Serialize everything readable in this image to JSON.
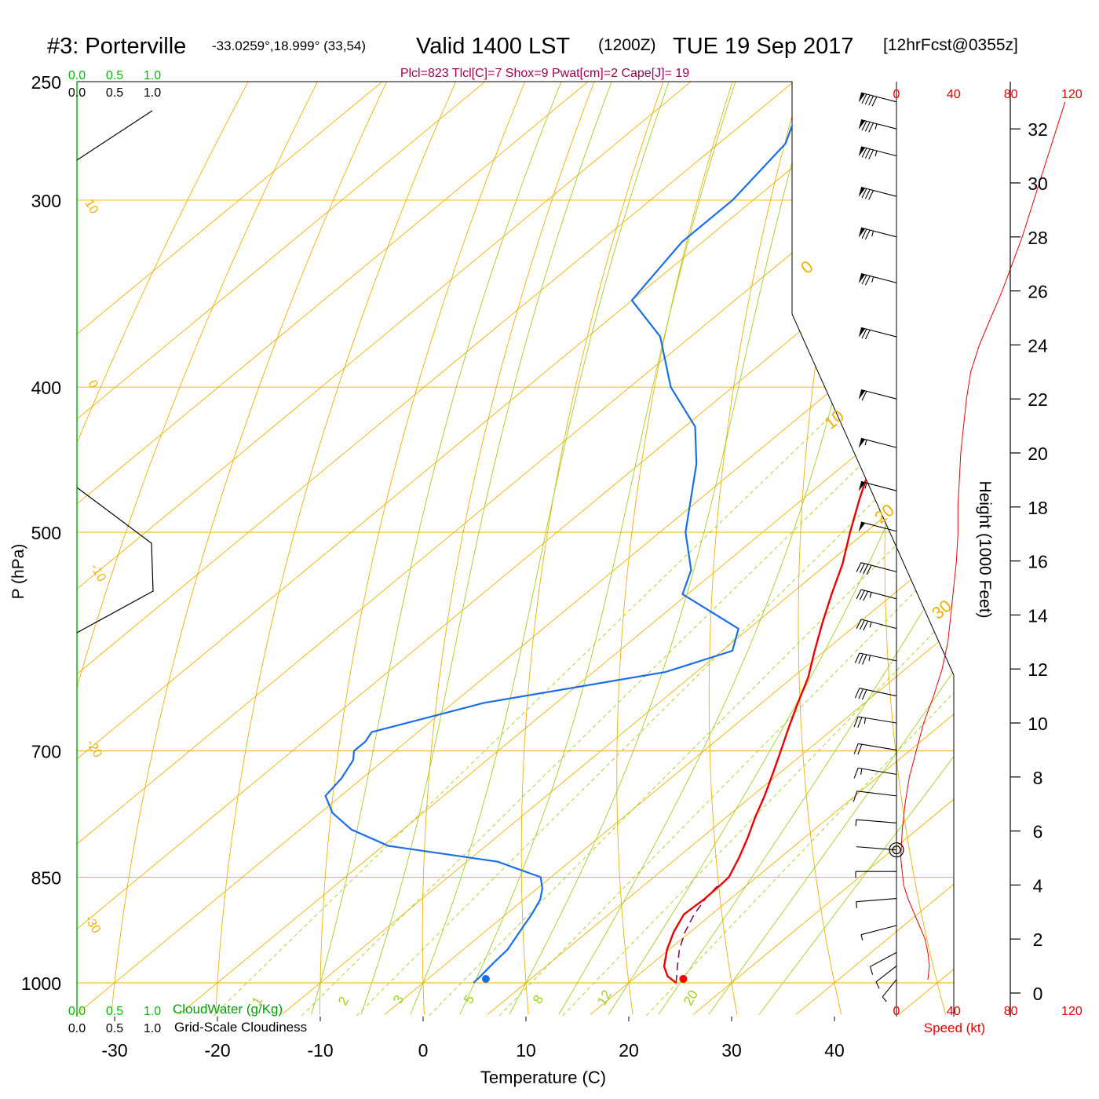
{
  "header": {
    "station": "#3: Porterville",
    "location": "-33.0259°,18.999° (33,54)",
    "valid": "Valid 1400 LST",
    "utc": "(1200Z)",
    "date": "TUE 19 Sep 2017",
    "forecast": "[12hrFcst@0355z]",
    "indices": "Plcl=823 Tlcl[C]=7 Shox=9 Pwat[cm]=2 Cape[J]= 19"
  },
  "labels": {
    "ylabel": "P (hPa)",
    "xlabel": "Temperature (C)",
    "height_label": "Height (1000 Feet)",
    "speed_label": "Speed (kt)",
    "cloudwater_label": "CloudWater (g/Kg)",
    "cloudiness_label": "Grid-Scale Cloudiness"
  },
  "colors": {
    "isotherm": "#f0b000",
    "dry_adiabat": "#f0b000",
    "moist_adiabat": "#a0d020",
    "mixing_ratio": "#a0d020",
    "temperature": "#ee0000",
    "dewpoint": "#1a6fe8",
    "parcel": "#800050",
    "cloudwater": "#00a000",
    "indices": "#a00050",
    "speed": "#ee0000"
  },
  "chart_data": {
    "type": "line",
    "title": "#3: Porterville",
    "xlabel": "Temperature (C)",
    "ylabel": "P (hPa)",
    "temperature_ticks": [
      -30,
      -20,
      -10,
      0,
      10,
      20,
      30,
      40
    ],
    "pressure_ticks": [
      250,
      300,
      400,
      500,
      700,
      850,
      1000
    ],
    "height_ticks": [
      0,
      2,
      4,
      6,
      8,
      10,
      12,
      14,
      16,
      18,
      20,
      22,
      24,
      26,
      28,
      30,
      32
    ],
    "speed_ticks": [
      0,
      40,
      80,
      120
    ],
    "cloud_ticks": [
      "0.0",
      "0.5",
      "1.0"
    ],
    "isotherm_labels": [
      "10",
      "0",
      "-10",
      "-20",
      "-30"
    ],
    "theta_labels": [
      "0",
      "10",
      "20",
      "30"
    ],
    "mixing_ratio_labels": [
      "1",
      "2",
      "3",
      "5",
      "8",
      "12",
      "20"
    ],
    "temperature_profile": {
      "pressure": [
        1000,
        990,
        975,
        950,
        925,
        900,
        880,
        860,
        850,
        825,
        800,
        775,
        750,
        725,
        700,
        675,
        650,
        625,
        600,
        575,
        550,
        525,
        500,
        475,
        450,
        425,
        400,
        375,
        350,
        325,
        300,
        275,
        260
      ],
      "temp": [
        24.6,
        23.0,
        21.5,
        19.8,
        18.4,
        17.3,
        17.5,
        17.4,
        17.3,
        16.0,
        14.5,
        12.8,
        11.2,
        9.4,
        7.5,
        5.5,
        3.5,
        1.5,
        -1.0,
        -3.5,
        -6.0,
        -8.5,
        -11.5,
        -14.5,
        -17.5,
        -20.5,
        -24.0,
        -27.5,
        -31.0,
        -35.0,
        -39.5,
        -44.5,
        -47.5
      ]
    },
    "dewpoint_profile": {
      "pressure": [
        1000,
        990,
        970,
        950,
        925,
        900,
        880,
        865,
        850,
        830,
        810,
        790,
        770,
        750,
        730,
        710,
        700,
        690,
        680,
        650,
        620,
        600,
        580,
        550,
        530,
        500,
        450,
        425,
        400,
        370,
        350,
        320,
        300,
        275,
        260
      ],
      "dewpoint": [
        4.9,
        4.8,
        4.5,
        4.3,
        3.4,
        2.5,
        1.6,
        0.5,
        -1.0,
        -7.0,
        -19.5,
        -25.0,
        -28.8,
        -31.5,
        -32.0,
        -33.0,
        -34.0,
        -34.0,
        -34.5,
        -27.0,
        -13.0,
        -9.0,
        -11.0,
        -20.5,
        -22.5,
        -27.5,
        -34.5,
        -39.0,
        -46.0,
        -53.0,
        -60.0,
        -62.0,
        -62.0,
        -63.5,
        -66.5
      ]
    },
    "parcel_profile": {
      "pressure": [
        1000,
        975,
        950,
        925,
        900,
        880,
        860
      ],
      "temp": [
        24.6,
        22.8,
        21.0,
        19.5,
        18.3,
        17.6,
        17.2
      ]
    },
    "surface_points": {
      "temp": 25.3,
      "dewpoint": 6.1,
      "pressure": 1000
    },
    "wind_speed_profile": {
      "height_kft": [
        0.5,
        1.0,
        1.5,
        2.0,
        2.5,
        3.0,
        3.5,
        4.0,
        5.0,
        6.0,
        7.0,
        8.0,
        9.0,
        10.0,
        11.0,
        12.0,
        13.0,
        14.0,
        15.0,
        16.0,
        17.0,
        18.0,
        19.0,
        20.0,
        21.0,
        22.0,
        23.0,
        24.0,
        25.0,
        26.0,
        28.0,
        30.0,
        32.0,
        33.0
      ],
      "speed_kt": [
        22,
        23,
        22,
        20,
        16,
        12,
        8,
        5,
        3,
        4,
        6,
        9,
        14,
        19,
        26,
        32,
        36,
        38,
        40,
        42,
        43,
        43,
        44,
        45,
        47,
        49,
        52,
        58,
        66,
        74,
        88,
        100,
        112,
        118
      ]
    },
    "wind_barbs": {
      "height_kft": [
        0.5,
        1.0,
        1.5,
        2.5,
        3.5,
        4.5,
        5.3,
        6.3,
        7.3,
        8.1,
        9.0,
        10.0,
        11.0,
        12.3,
        13.5,
        14.6,
        15.6,
        17.1,
        18.6,
        20.2,
        22.0,
        24.3,
        26.3,
        28.0,
        29.5,
        31.0,
        32.0,
        33.0
      ],
      "speed_kt": [
        10,
        12,
        12,
        8,
        6,
        5,
        4,
        5,
        10,
        15,
        20,
        25,
        30,
        35,
        35,
        35,
        40,
        50,
        55,
        55,
        60,
        70,
        75,
        75,
        80,
        85,
        85,
        90
      ],
      "direction_deg": [
        200,
        210,
        220,
        240,
        260,
        270,
        280,
        280,
        285,
        290,
        290,
        290,
        295,
        295,
        300,
        300,
        300,
        300,
        300,
        300,
        300,
        300,
        300,
        300,
        300,
        300,
        300,
        300
      ]
    }
  }
}
